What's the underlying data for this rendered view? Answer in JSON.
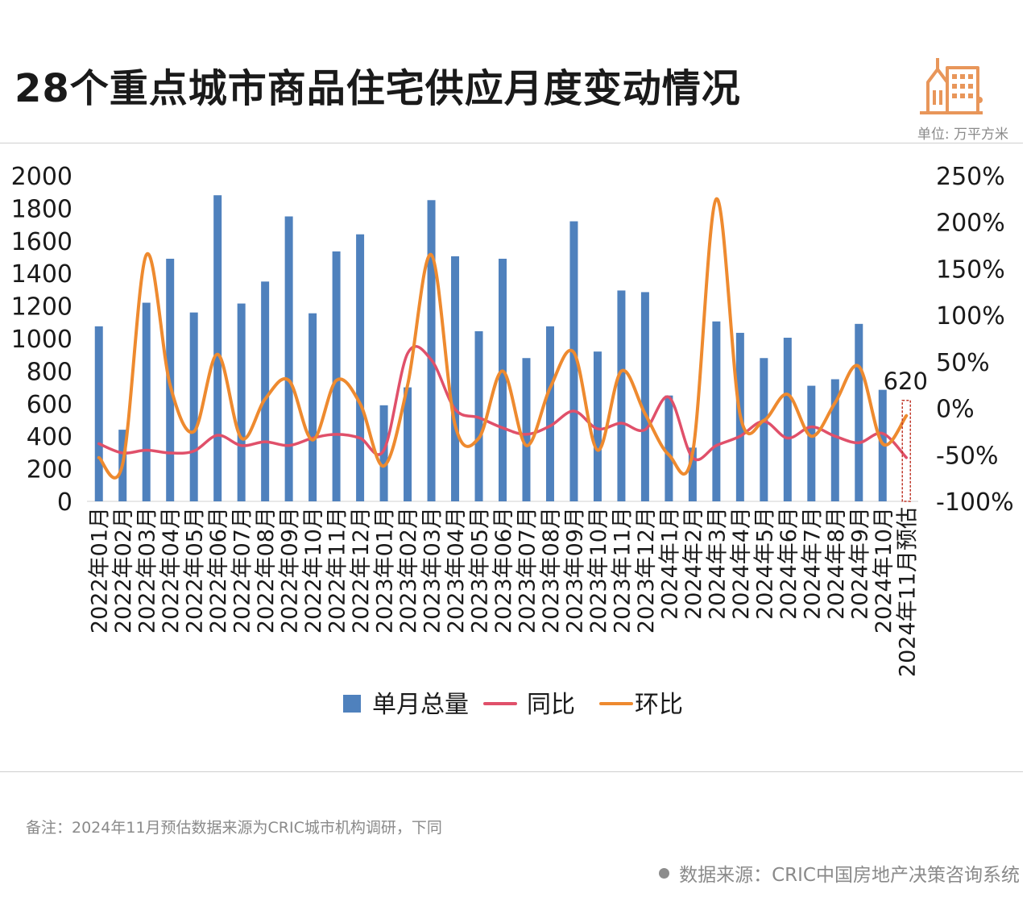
{
  "header": {
    "title": "28个重点城市商品住宅供应月度变动情况",
    "unit": "单位: 万平方米"
  },
  "footer": {
    "note": "备注：2024年11月预估数据来源为CRIC城市机构调研，下同",
    "source": "数据来源：CRIC中国房地产决策咨询系统"
  },
  "colors": {
    "bar": "#4f81bd",
    "yoy": "#e0506a",
    "mom": "#ee8a2f",
    "logo": "#e8965a"
  },
  "chart_data": {
    "type": "bar",
    "title": "28个重点城市商品住宅供应月度变动情况",
    "unit": "万平方米",
    "categories": [
      "2022年01月",
      "2022年02月",
      "2022年03月",
      "2022年04月",
      "2022年05月",
      "2022年06月",
      "2022年07月",
      "2022年08月",
      "2022年09月",
      "2022年10月",
      "2022年11月",
      "2022年12月",
      "2023年01月",
      "2023年02月",
      "2023年03月",
      "2023年04月",
      "2023年05月",
      "2023年06月",
      "2023年07月",
      "2023年08月",
      "2023年09月",
      "2023年10月",
      "2023年11月",
      "2023年12月",
      "2024年1月",
      "2024年2月",
      "2024年3月",
      "2024年4月",
      "2024年5月",
      "2024年6月",
      "2024年7月",
      "2024年8月",
      "2024年9月",
      "2024年10月",
      "2024年11月预估"
    ],
    "series": [
      {
        "name": "单月总量",
        "type": "bar",
        "axis": "left",
        "values": [
          1075,
          440,
          1220,
          1490,
          1160,
          1880,
          1215,
          1350,
          1750,
          1155,
          1535,
          1640,
          590,
          700,
          1850,
          1505,
          1045,
          1490,
          880,
          1075,
          1720,
          920,
          1295,
          1285,
          650,
          330,
          1105,
          1035,
          880,
          1005,
          710,
          750,
          1090,
          685,
          620
        ]
      },
      {
        "name": "同比",
        "type": "line",
        "axis": "right",
        "values": [
          -38,
          -48,
          -45,
          -48,
          -46,
          -29,
          -40,
          -36,
          -40,
          -32,
          -28,
          -32,
          -45,
          59,
          52,
          -1,
          -10,
          -21,
          -28,
          -19,
          -3,
          -22,
          -16,
          -23,
          12,
          -53,
          -40,
          -30,
          -14,
          -32,
          -20,
          -30,
          -37,
          -27,
          -53
        ]
      },
      {
        "name": "环比",
        "type": "line",
        "axis": "right",
        "values": [
          -53,
          -60,
          165,
          25,
          -25,
          58,
          -32,
          10,
          30,
          -34,
          30,
          5,
          -62,
          25,
          165,
          -18,
          -32,
          40,
          -40,
          22,
          60,
          -45,
          40,
          -6,
          -50,
          -48,
          225,
          -7,
          -13,
          15,
          -30,
          6,
          45,
          -38,
          -8
        ]
      }
    ],
    "y_left": {
      "min": 0,
      "max": 2000,
      "ticks": [
        "0",
        "200",
        "400",
        "600",
        "800",
        "1000",
        "1200",
        "1400",
        "1600",
        "1800",
        "2000"
      ]
    },
    "y_right": {
      "min": -100,
      "max": 250,
      "ticks": [
        "-100%",
        "-50%",
        "0%",
        "50%",
        "100%",
        "150%",
        "200%",
        "250%"
      ]
    },
    "annotation": {
      "label": "620",
      "category": "2024年11月预估"
    },
    "legend": [
      "单月总量",
      "同比",
      "环比"
    ],
    "legend_position": "bottom-center"
  }
}
